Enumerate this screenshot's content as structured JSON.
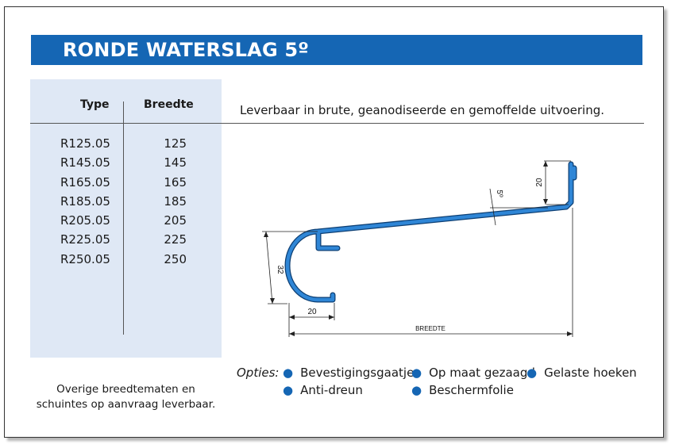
{
  "title": "RONDE WATERSLAG 5º",
  "table": {
    "headers": {
      "type": "Type",
      "width": "Breedte"
    },
    "rows": [
      {
        "type": "R125.05",
        "width": "125"
      },
      {
        "type": "R145.05",
        "width": "145"
      },
      {
        "type": "R165.05",
        "width": "165"
      },
      {
        "type": "R185.05",
        "width": "185"
      },
      {
        "type": "R205.05",
        "width": "205"
      },
      {
        "type": "R225.05",
        "width": "225"
      },
      {
        "type": "R250.05",
        "width": "250"
      }
    ]
  },
  "note": "Overige breedtematen en schuintes op aanvraag leverbaar.",
  "description": "Leverbaar in brute, geanodiseerde en gemoffelde uitvoering.",
  "drawing": {
    "dim_height": "32",
    "dim_lip": "20",
    "dim_upstand": "20",
    "dim_angle": "5º",
    "dim_width": "BREEDTE"
  },
  "options": {
    "label": "Opties:",
    "items": [
      "Bevestigingsgaatjes",
      "Op maat gezaagd",
      "Gelaste hoeken",
      "Anti-dreun",
      "Beschermfolie"
    ]
  },
  "colors": {
    "accent": "#1566b4",
    "panel": "#dfe8f5",
    "bullet": "#1566b4"
  }
}
